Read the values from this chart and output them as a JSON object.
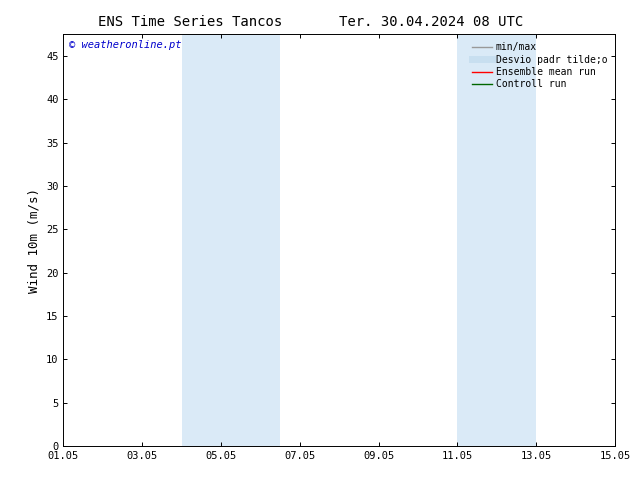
{
  "title_left": "ENS Time Series Tancos",
  "title_right": "Ter. 30.04.2024 08 UTC",
  "ylabel": "Wind 10m (m/s)",
  "xlim_dates": [
    "01.05",
    "03.05",
    "05.05",
    "07.05",
    "09.05",
    "11.05",
    "13.05",
    "15.05"
  ],
  "xlim_numeric": [
    0,
    14
  ],
  "ylim": [
    0,
    47.5
  ],
  "yticks": [
    0,
    5,
    10,
    15,
    20,
    25,
    30,
    35,
    40,
    45
  ],
  "shaded_bands": [
    {
      "x_start": 3.0,
      "x_end": 5.5
    },
    {
      "x_start": 10.0,
      "x_end": 12.0
    }
  ],
  "shade_color": "#daeaf7",
  "background_color": "#ffffff",
  "legend_items": [
    {
      "label": "min/max",
      "color": "#999999",
      "lw": 1.0,
      "linestyle": "-"
    },
    {
      "label": "Desvio padr tilde;o",
      "color": "#c8dff0",
      "lw": 5,
      "linestyle": "-"
    },
    {
      "label": "Ensemble mean run",
      "color": "#ff0000",
      "lw": 1.0,
      "linestyle": "-"
    },
    {
      "label": "Controll run",
      "color": "#006600",
      "lw": 1.0,
      "linestyle": "-"
    }
  ],
  "watermark_text": "© weatheronline.pt",
  "watermark_color": "#0000cc",
  "watermark_fontsize": 7.5,
  "title_fontsize": 10,
  "tick_fontsize": 7.5,
  "ylabel_fontsize": 9,
  "legend_fontsize": 7.0
}
